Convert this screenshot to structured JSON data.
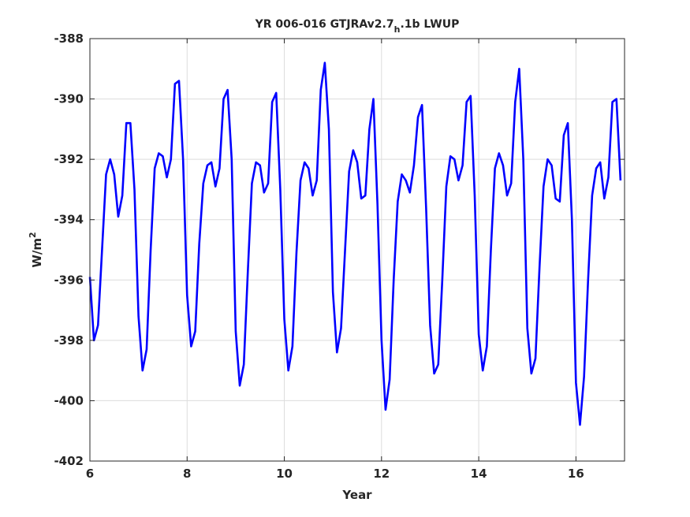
{
  "chart_data": {
    "type": "line",
    "title": "YR 006-016 GTJRAv2.7",
    "title_subscript": "h",
    "title_suffix": ".1b LWUP",
    "xlabel": "Year",
    "ylabel": "W/m",
    "ylabel_superscript": "2",
    "xlim": [
      6,
      17
    ],
    "ylim": [
      -402,
      -388
    ],
    "xticks": [
      6,
      8,
      10,
      12,
      14,
      16
    ],
    "yticks": [
      -388,
      -390,
      -392,
      -394,
      -396,
      -398,
      -400,
      -402
    ],
    "grid": true,
    "series_color": "#0000ff",
    "x": [
      6.0,
      6.083,
      6.167,
      6.25,
      6.333,
      6.417,
      6.5,
      6.583,
      6.667,
      6.75,
      6.833,
      6.917,
      7.0,
      7.083,
      7.167,
      7.25,
      7.333,
      7.417,
      7.5,
      7.583,
      7.667,
      7.75,
      7.833,
      7.917,
      8.0,
      8.083,
      8.167,
      8.25,
      8.333,
      8.417,
      8.5,
      8.583,
      8.667,
      8.75,
      8.833,
      8.917,
      9.0,
      9.083,
      9.167,
      9.25,
      9.333,
      9.417,
      9.5,
      9.583,
      9.667,
      9.75,
      9.833,
      9.917,
      10.0,
      10.083,
      10.167,
      10.25,
      10.333,
      10.417,
      10.5,
      10.583,
      10.667,
      10.75,
      10.833,
      10.917,
      11.0,
      11.083,
      11.167,
      11.25,
      11.333,
      11.417,
      11.5,
      11.583,
      11.667,
      11.75,
      11.833,
      11.917,
      12.0,
      12.083,
      12.167,
      12.25,
      12.333,
      12.417,
      12.5,
      12.583,
      12.667,
      12.75,
      12.833,
      12.917,
      13.0,
      13.083,
      13.167,
      13.25,
      13.333,
      13.417,
      13.5,
      13.583,
      13.667,
      13.75,
      13.833,
      13.917,
      14.0,
      14.083,
      14.167,
      14.25,
      14.333,
      14.417,
      14.5,
      14.583,
      14.667,
      14.75,
      14.833,
      14.917,
      15.0,
      15.083,
      15.167,
      15.25,
      15.333,
      15.417,
      15.5,
      15.583,
      15.667,
      15.75,
      15.833,
      15.917,
      16.0,
      16.083,
      16.167,
      16.25,
      16.333,
      16.417,
      16.5,
      16.583,
      16.667,
      16.75,
      16.833,
      16.917
    ],
    "values": [
      -395.9,
      -398.0,
      -397.5,
      -395.0,
      -392.5,
      -392.0,
      -392.5,
      -393.9,
      -393.2,
      -390.8,
      -390.8,
      -393.0,
      -397.2,
      -399.0,
      -398.3,
      -395.0,
      -392.3,
      -391.8,
      -391.9,
      -392.6,
      -392.0,
      -389.5,
      -389.4,
      -392.0,
      -396.5,
      -398.2,
      -397.7,
      -394.8,
      -392.8,
      -392.2,
      -392.1,
      -392.9,
      -392.3,
      -390.0,
      -389.7,
      -392.0,
      -397.7,
      -399.5,
      -398.8,
      -395.7,
      -392.8,
      -392.1,
      -392.2,
      -393.1,
      -392.8,
      -390.1,
      -389.8,
      -393.0,
      -397.3,
      -399.0,
      -398.2,
      -395.1,
      -392.7,
      -392.1,
      -392.3,
      -393.2,
      -392.7,
      -389.7,
      -388.8,
      -391.0,
      -396.4,
      -398.4,
      -397.6,
      -395.0,
      -392.4,
      -391.7,
      -392.1,
      -393.3,
      -393.2,
      -391.0,
      -390.0,
      -393.5,
      -398.0,
      -400.3,
      -399.3,
      -396.0,
      -393.4,
      -392.5,
      -392.7,
      -393.1,
      -392.2,
      -390.6,
      -390.2,
      -393.6,
      -397.5,
      -399.1,
      -398.8,
      -396.0,
      -392.9,
      -391.9,
      -392.0,
      -392.7,
      -392.2,
      -390.1,
      -389.9,
      -393.2,
      -397.8,
      -399.0,
      -398.2,
      -395.0,
      -392.3,
      -391.8,
      -392.2,
      -393.2,
      -392.8,
      -390.1,
      -389.0,
      -392.0,
      -397.6,
      -399.1,
      -398.6,
      -395.6,
      -392.9,
      -392.0,
      -392.2,
      -393.3,
      -393.4,
      -391.2,
      -390.8,
      -394.0,
      -399.4,
      -400.8,
      -399.2,
      -396.0,
      -393.2,
      -392.3,
      -392.1,
      -393.3,
      -392.6,
      -390.1,
      -390.0,
      -392.7
    ]
  }
}
